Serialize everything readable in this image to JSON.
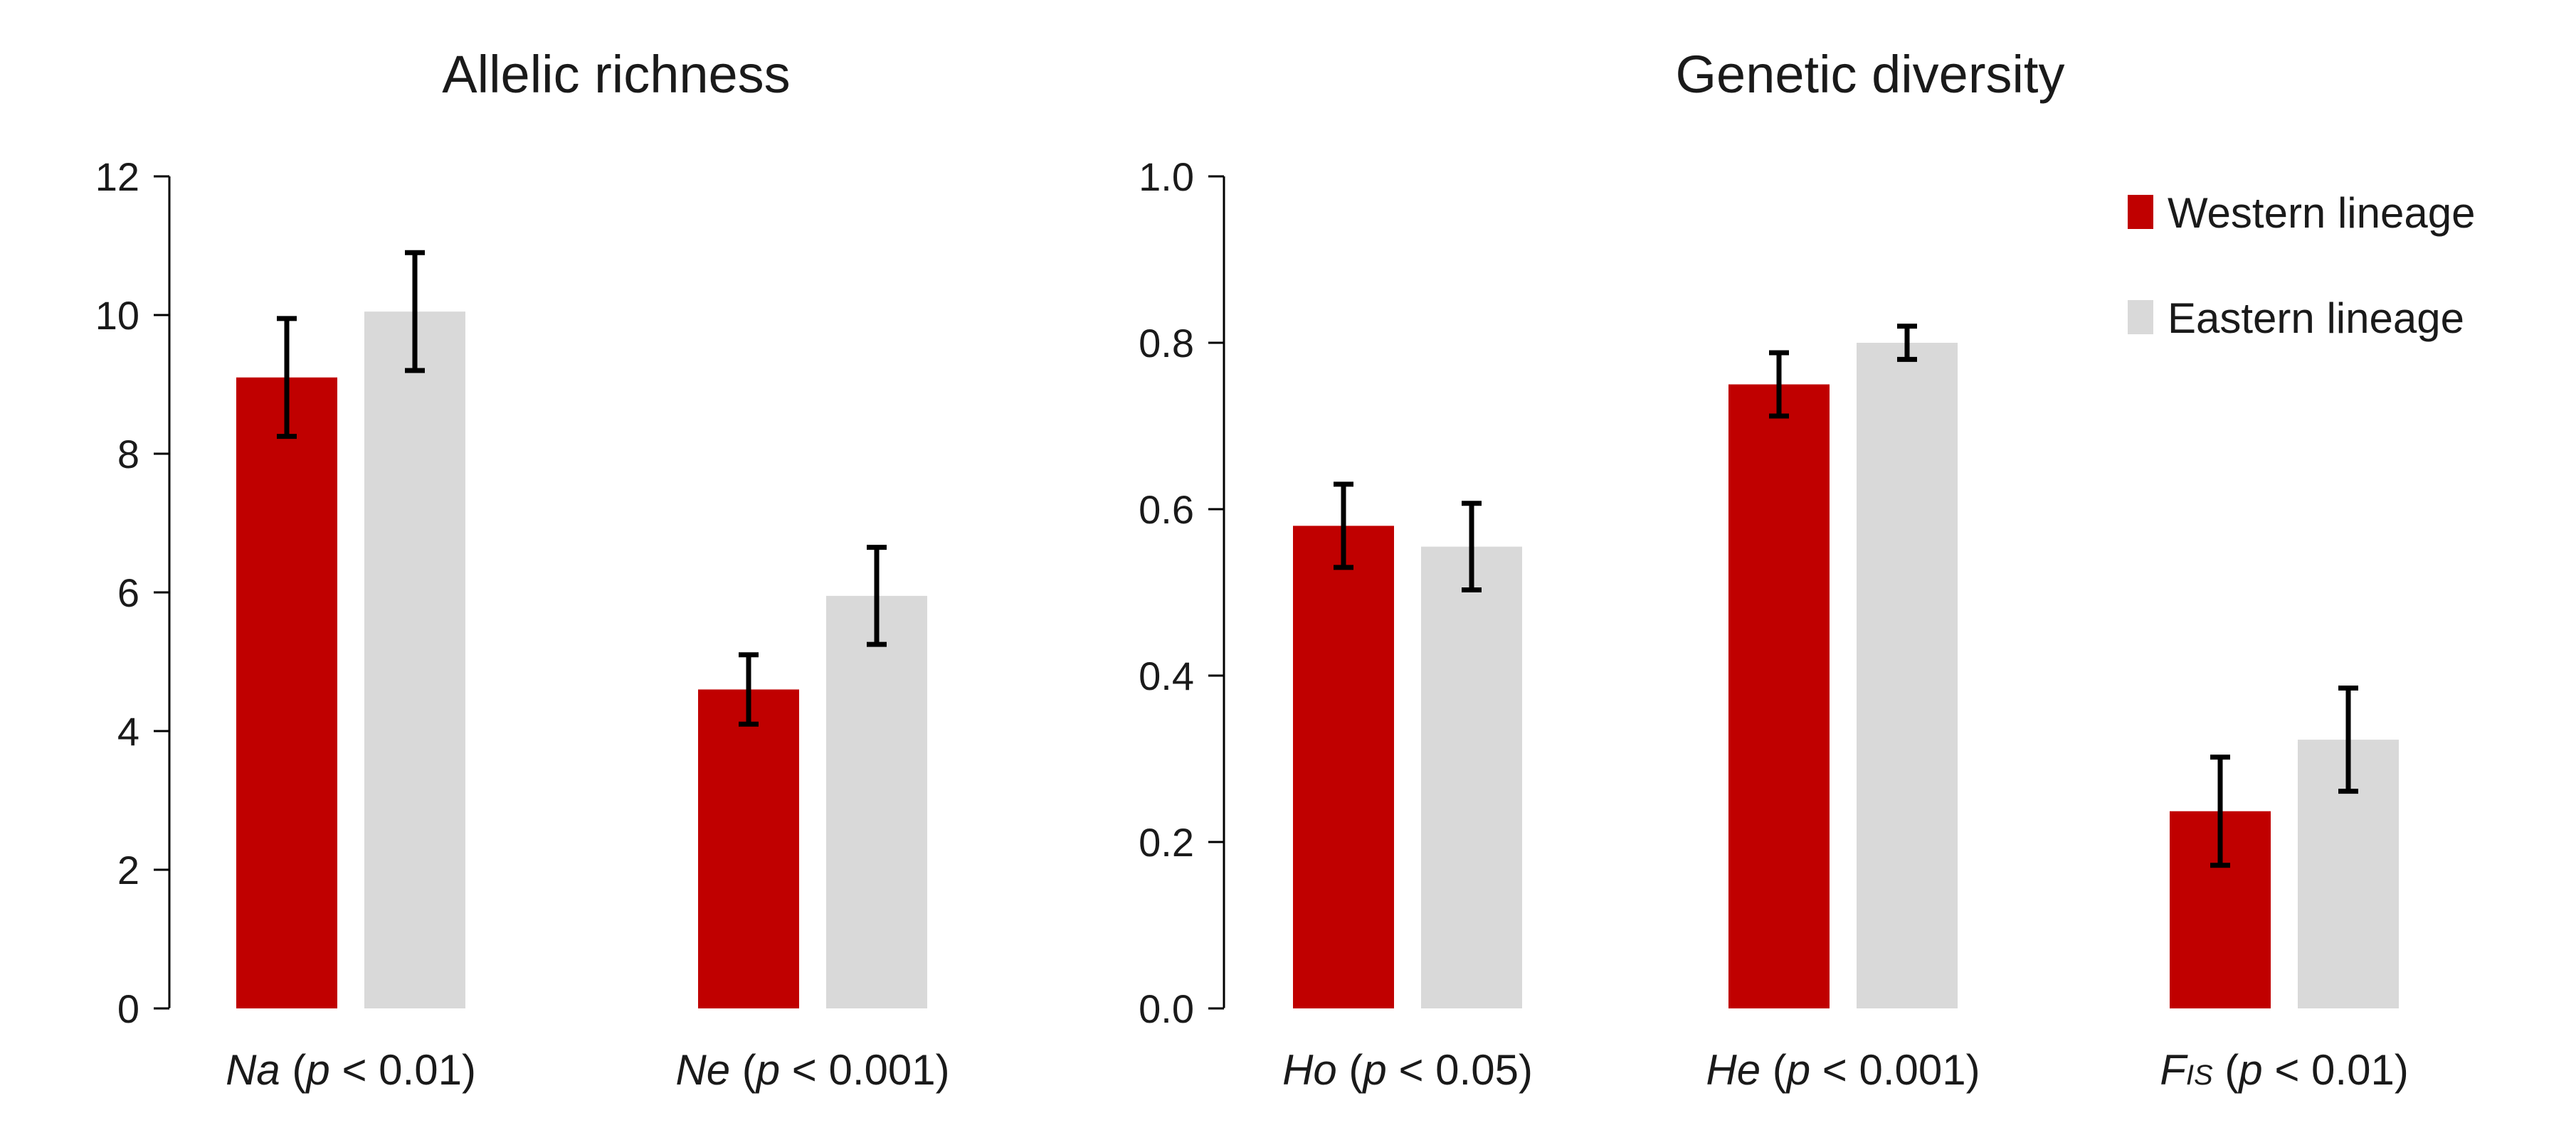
{
  "legend": [
    {
      "name": "Western lineage",
      "color": "#c00000"
    },
    {
      "name": "Eastern lineage",
      "color": "#d9d9d9"
    }
  ],
  "chart_data": [
    {
      "type": "bar",
      "title": "Allelic richness",
      "ylim": [
        0,
        12
      ],
      "yticks": [
        "0",
        "2",
        "4",
        "6",
        "8",
        "10",
        "12"
      ],
      "categories": [
        {
          "name": "Na",
          "stat": " (p < 0.01)"
        },
        {
          "name": "Ne",
          "stat": " (p < 0.001)"
        }
      ],
      "series": [
        {
          "name": "Western lineage",
          "color": "#c00000",
          "values": [
            9.1,
            4.6
          ],
          "errors": [
            0.85,
            0.5
          ]
        },
        {
          "name": "Eastern lineage",
          "color": "#d9d9d9",
          "values": [
            10.05,
            5.95
          ],
          "errors": [
            0.85,
            0.7
          ]
        }
      ]
    },
    {
      "type": "bar",
      "title": "Genetic diversity",
      "ylim": [
        0,
        1.0
      ],
      "yticks": [
        "0.0",
        "0.2",
        "0.4",
        "0.6",
        "0.8",
        "1.0"
      ],
      "categories": [
        {
          "name": "Ho",
          "stat": " (p < 0.05)"
        },
        {
          "name": "He",
          "stat": " (p < 0.001)"
        },
        {
          "name": "F",
          "sub": "IS",
          "stat": " (p < 0.01)"
        }
      ],
      "series": [
        {
          "name": "Western lineage",
          "color": "#c00000",
          "values": [
            0.58,
            0.75,
            0.237
          ],
          "errors": [
            0.05,
            0.038,
            0.065
          ]
        },
        {
          "name": "Eastern lineage",
          "color": "#d9d9d9",
          "values": [
            0.555,
            0.8,
            0.323
          ],
          "errors": [
            0.052,
            0.02,
            0.062
          ]
        }
      ]
    }
  ]
}
